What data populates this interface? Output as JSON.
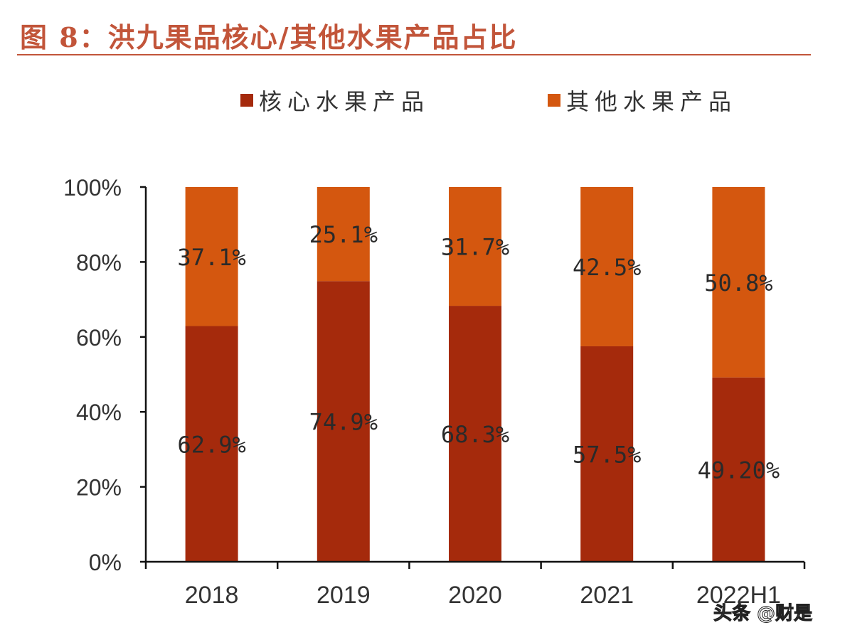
{
  "chart_data": {
    "type": "bar",
    "stacked": true,
    "title": "图 8：洪九果品核心/其他水果产品占比",
    "categories": [
      "2018",
      "2019",
      "2020",
      "2021",
      "2022H1"
    ],
    "series": [
      {
        "name": "核心水果产品",
        "values": [
          62.9,
          74.9,
          68.3,
          57.5,
          49.2
        ],
        "labels": [
          "62.9%",
          "74.9%",
          "68.3%",
          "57.5%",
          "49.20%"
        ],
        "color": "#A52A0C"
      },
      {
        "name": "其他水果产品",
        "values": [
          37.1,
          25.1,
          31.7,
          42.5,
          50.8
        ],
        "labels": [
          "37.1%",
          "25.1%",
          "31.7%",
          "42.5%",
          "50.8%"
        ],
        "color": "#D4570F"
      }
    ],
    "ylim": [
      0,
      100
    ],
    "yticks": [
      "0%",
      "20%",
      "40%",
      "60%",
      "80%",
      "100%"
    ],
    "grid": false,
    "legend": "top"
  },
  "watermark": "头条 @财是"
}
